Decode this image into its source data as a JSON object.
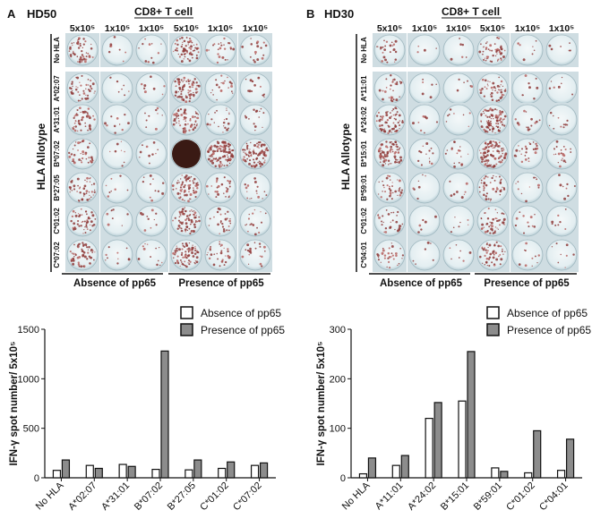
{
  "panels": [
    {
      "letter": "A",
      "donor": "HD50",
      "cell_type": "CD8+ T cell",
      "concentrations": [
        "5x10⁵",
        "1x10⁵",
        "1x10⁵",
        "5x10⁵",
        "1x10⁵",
        "1x10⁵"
      ],
      "side_label": "HLA Allotype",
      "row_labels": [
        "No HLA",
        "A*02:07",
        "A*31:01",
        "B*07:02",
        "B*27:05",
        "C*01:02",
        "C*07:02"
      ],
      "condition_labels": [
        "Absence of pp65",
        "Presence of pp65"
      ],
      "well_intensity": [
        [
          0.35,
          0.06,
          0.08,
          0.45,
          0.18,
          0.12
        ],
        [
          0.3,
          0.05,
          0.06,
          0.55,
          0.15,
          0.1
        ],
        [
          0.33,
          0.07,
          0.07,
          0.45,
          0.15,
          0.1
        ],
        [
          0.3,
          0.06,
          0.07,
          1.0,
          0.75,
          0.6
        ],
        [
          0.32,
          0.06,
          0.08,
          0.5,
          0.2,
          0.12
        ],
        [
          0.35,
          0.06,
          0.08,
          0.5,
          0.18,
          0.12
        ],
        [
          0.4,
          0.07,
          0.09,
          0.55,
          0.22,
          0.14
        ]
      ]
    },
    {
      "letter": "B",
      "donor": "HD30",
      "cell_type": "CD8+ T cell",
      "concentrations": [
        "5x10⁵",
        "1x10⁵",
        "1x10⁵",
        "5x10⁵",
        "1x10⁵",
        "1x10⁵"
      ],
      "side_label": "HLA Allotype",
      "row_labels": [
        "No HLA",
        "A*11:01",
        "A*24:02",
        "B*15:01",
        "B*59:01",
        "C*01:02",
        "C*04:01"
      ],
      "condition_labels": [
        "Absence of pp65",
        "Presence of pp65"
      ],
      "well_intensity": [
        [
          0.18,
          0.03,
          0.04,
          0.35,
          0.06,
          0.05
        ],
        [
          0.22,
          0.04,
          0.04,
          0.3,
          0.06,
          0.05
        ],
        [
          0.45,
          0.06,
          0.06,
          0.6,
          0.1,
          0.08
        ],
        [
          0.55,
          0.1,
          0.12,
          0.7,
          0.18,
          0.15
        ],
        [
          0.25,
          0.05,
          0.06,
          0.3,
          0.08,
          0.06
        ],
        [
          0.2,
          0.04,
          0.05,
          0.35,
          0.08,
          0.06
        ],
        [
          0.22,
          0.04,
          0.05,
          0.35,
          0.07,
          0.06
        ]
      ]
    }
  ],
  "chart_data": [
    {
      "type": "bar",
      "title": "",
      "ylabel": "IFN-γ spot number/ 5x10⁵",
      "xlabel": "",
      "categories": [
        "No HLA",
        "A*02:07",
        "A*31:01",
        "B*07:02",
        "B*27:05",
        "C*01:02",
        "C*07:02"
      ],
      "series": [
        {
          "name": "Absence of pp65",
          "color": "#ffffff",
          "values": [
            75,
            125,
            135,
            85,
            80,
            95,
            125
          ]
        },
        {
          "name": "Presence of pp65",
          "color": "#8c8c8c",
          "values": [
            180,
            95,
            115,
            1280,
            180,
            160,
            150
          ]
        }
      ],
      "ylim": [
        0,
        1500
      ],
      "yticks": [
        0,
        500,
        1000,
        1500
      ],
      "legend": "top-right"
    },
    {
      "type": "bar",
      "title": "",
      "ylabel": "IFN-γ spot number/ 5x10⁵",
      "xlabel": "",
      "categories": [
        "No HLA",
        "A*11:01",
        "A*24:02",
        "B*15:01",
        "B*59:01",
        "C*01:02",
        "C*04:01"
      ],
      "series": [
        {
          "name": "Absence of pp65",
          "color": "#ffffff",
          "values": [
            8,
            25,
            120,
            155,
            20,
            10,
            15
          ]
        },
        {
          "name": "Presence of pp65",
          "color": "#8c8c8c",
          "values": [
            40,
            45,
            152,
            255,
            13,
            95,
            78
          ]
        }
      ],
      "ylim": [
        0,
        300
      ],
      "yticks": [
        0,
        100,
        200,
        300
      ],
      "legend": "top-right"
    }
  ]
}
